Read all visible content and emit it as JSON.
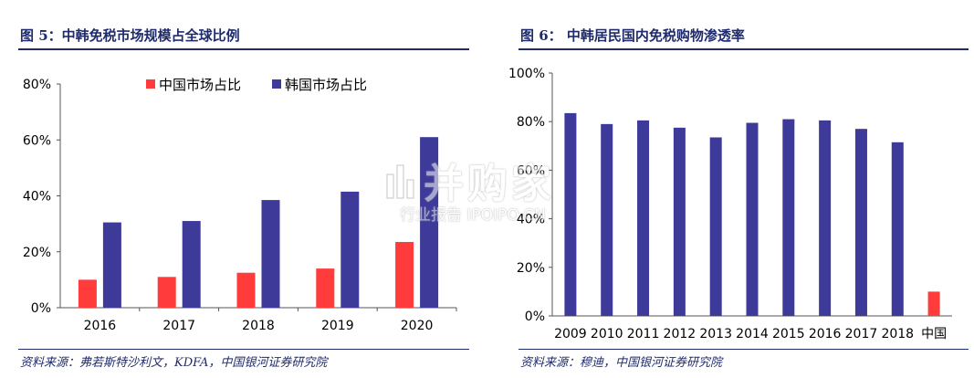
{
  "charts": [
    {
      "figure_title": "图 5：中韩免税市场规模占全球比例",
      "source": "资料来源：弗若斯特沙利文，KDFA，中国银河证券研究院",
      "chart_data": {
        "type": "bar",
        "categories": [
          "2016",
          "2017",
          "2018",
          "2019",
          "2020"
        ],
        "series": [
          {
            "name": "中国市场占比",
            "color": "#ff3b3b",
            "values": [
              10,
              11,
              12.5,
              14,
              23.5
            ]
          },
          {
            "name": "韩国市场占比",
            "color": "#3d3a99",
            "values": [
              30.5,
              31,
              38.5,
              41.5,
              61
            ]
          }
        ],
        "ylim": [
          0,
          80
        ],
        "yticks": [
          "0%",
          "20%",
          "40%",
          "60%",
          "80%"
        ],
        "legend_position": "top",
        "grid": false
      }
    },
    {
      "figure_title": "图 6：  中韩居民国内免税购物渗透率",
      "source": "资料来源：穆迪，中国银河证券研究院",
      "chart_data": {
        "type": "bar",
        "categories": [
          "2009",
          "2010",
          "2011",
          "2012",
          "2013",
          "2014",
          "2015",
          "2016",
          "2017",
          "2018",
          "中国"
        ],
        "values": [
          83.5,
          79,
          80.5,
          77.5,
          73.5,
          79.5,
          81,
          80.5,
          77,
          71.5,
          10
        ],
        "bar_colors": [
          "#3d3a99",
          "#3d3a99",
          "#3d3a99",
          "#3d3a99",
          "#3d3a99",
          "#3d3a99",
          "#3d3a99",
          "#3d3a99",
          "#3d3a99",
          "#3d3a99",
          "#ff3b3b"
        ],
        "ylim": [
          0,
          100
        ],
        "yticks": [
          "0%",
          "20%",
          "40%",
          "60%",
          "80%",
          "100%"
        ],
        "grid": false
      }
    }
  ],
  "watermark": {
    "main": "并购家",
    "sub": "行业报告 IPOIPO.CN"
  }
}
